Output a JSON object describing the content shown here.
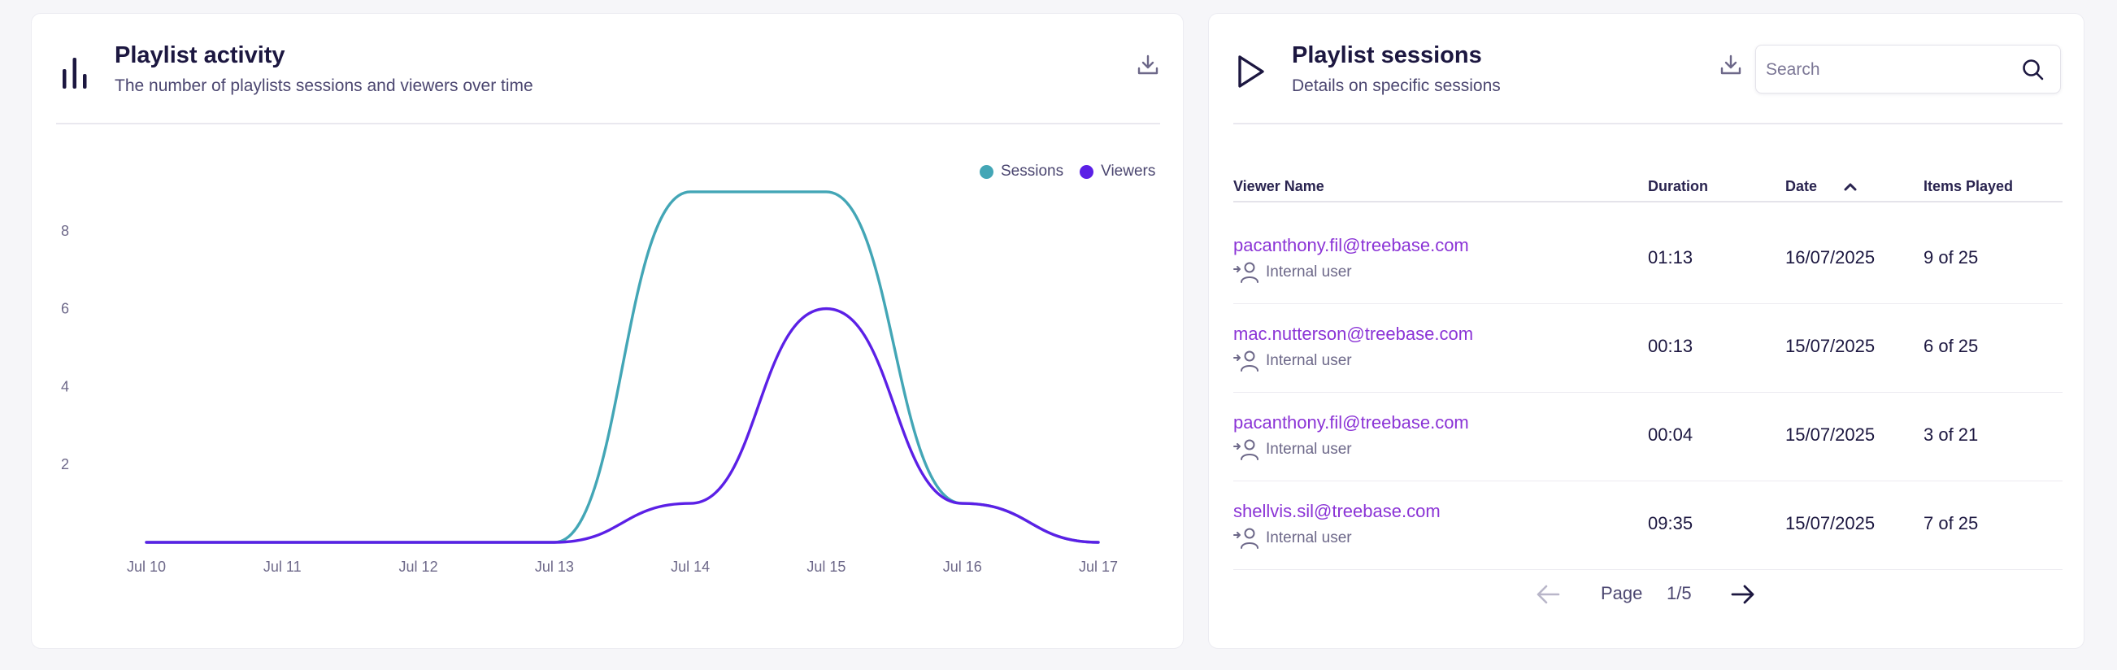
{
  "activity": {
    "title": "Playlist activity",
    "subtitle": "The number of playlists sessions and viewers over time",
    "header_icon": "bar-chart-icon",
    "download_icon": "download-icon"
  },
  "chart_data": {
    "type": "line",
    "title": "",
    "xlabel": "",
    "ylabel": "",
    "x": [
      "Jul 10",
      "Jul 11",
      "Jul 12",
      "Jul 13",
      "Jul 14",
      "Jul 15",
      "Jul 16",
      "Jul 17"
    ],
    "y_ticks": [
      "2",
      "4",
      "6",
      "8"
    ],
    "ylim": [
      0,
      9.5
    ],
    "legend_position": "top-right",
    "grid": false,
    "series": [
      {
        "name": "Sessions",
        "color": "#43a6b6",
        "values": [
          0,
          0,
          0,
          0,
          9,
          9,
          1,
          0
        ]
      },
      {
        "name": "Viewers",
        "color": "#5b20e6",
        "values": [
          0,
          0,
          0,
          0,
          1,
          6,
          1,
          0
        ]
      }
    ]
  },
  "sessions": {
    "title": "Playlist sessions",
    "subtitle": "Details on specific sessions",
    "header_icon": "play-icon",
    "download_icon": "download-icon",
    "search": {
      "placeholder": "Search",
      "value": "",
      "icon": "search-icon"
    },
    "columns": {
      "viewer": "Viewer Name",
      "duration": "Duration",
      "date": "Date",
      "items": "Items Played",
      "sort_icon": "chevron-up-icon"
    },
    "rows": [
      {
        "email": "pacanthony.fil@treebase.com",
        "type": "Internal user",
        "duration": "01:13",
        "date": "16/07/2025",
        "items": "9 of 25"
      },
      {
        "email": "mac.nutterson@treebase.com",
        "type": "Internal user",
        "duration": "00:13",
        "date": "15/07/2025",
        "items": "6 of 25"
      },
      {
        "email": "pacanthony.fil@treebase.com",
        "type": "Internal user",
        "duration": "00:04",
        "date": "15/07/2025",
        "items": "3 of 21"
      },
      {
        "email": "shellvis.sil@treebase.com",
        "type": "Internal user",
        "duration": "09:35",
        "date": "15/07/2025",
        "items": "7 of 25"
      }
    ],
    "pagination": {
      "page_label": "Page",
      "page_value": "1/5",
      "prev_icon": "arrow-left-icon",
      "next_icon": "arrow-right-icon"
    }
  }
}
